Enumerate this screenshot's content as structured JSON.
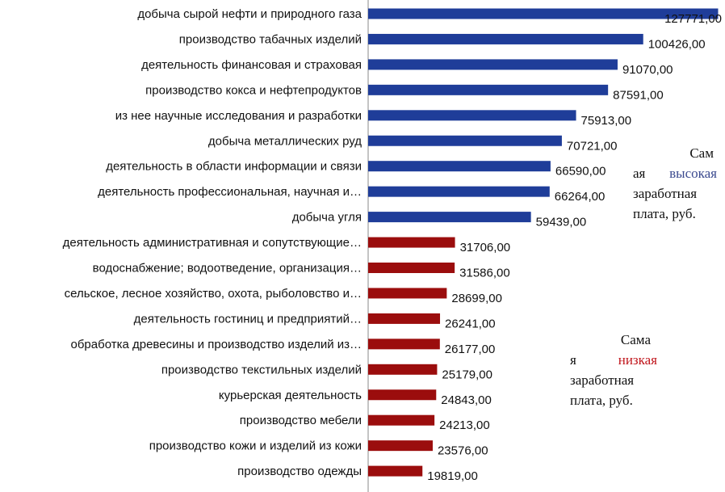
{
  "chart_data": {
    "type": "bar",
    "orientation": "horizontal",
    "categories": [
      "добыча сырой нефти и природного газа",
      "производство табачных изделий",
      "деятельность финансовая и страховая",
      "производство кокса и нефтепродуктов",
      "из нее научные исследования и разработки",
      "добыча металлических руд",
      "деятельность в области информации и связи",
      "деятельность профессиональная, научная и…",
      "добыча угля",
      "деятельность административная и сопутствующие…",
      "водоснабжение; водоотведение, организация…",
      "сельское, лесное хозяйство, охота, рыболовство и…",
      "деятельность гостиниц и предприятий…",
      "обработка древесины и производство изделий из…",
      "производство текстильных изделий",
      "курьерская деятельность",
      "производство мебели",
      "производство кожи и изделий из кожи",
      "производство одежды"
    ],
    "values": [
      127771,
      100426,
      91070,
      87591,
      75913,
      70721,
      66590,
      66264,
      59439,
      31706,
      31586,
      28699,
      26241,
      26177,
      25179,
      24843,
      24213,
      23576,
      19819
    ],
    "value_labels": [
      "127771,00",
      "100426,00",
      "91070,00",
      "87591,00",
      "75913,00",
      "70721,00",
      "66590,00",
      "66264,00",
      "59439,00",
      "31706,00",
      "31586,00",
      "28699,00",
      "26241,00",
      "26177,00",
      "25179,00",
      "24843,00",
      "24213,00",
      "23576,00",
      "19819,00"
    ],
    "groups": [
      "high",
      "high",
      "high",
      "high",
      "high",
      "high",
      "high",
      "high",
      "high",
      "low",
      "low",
      "low",
      "low",
      "low",
      "low",
      "low",
      "low",
      "low",
      "low"
    ],
    "xlim": [
      0,
      135000
    ],
    "grid": false,
    "legend": "none",
    "colors": {
      "high": "#1f3d99",
      "low": "#9b0d0d"
    }
  },
  "annotations": {
    "high": {
      "line1": "Сам",
      "line2a": "ая",
      "line2b": "высокая",
      "line3": "заработная",
      "line4": "плата, руб.",
      "keyword_color": "#3b4a8f"
    },
    "low": {
      "line1": "Сама",
      "line2a": "я",
      "line2b": "низкая",
      "line3": "заработная",
      "line4": "плата, руб.",
      "keyword_color": "#c0151b"
    }
  }
}
